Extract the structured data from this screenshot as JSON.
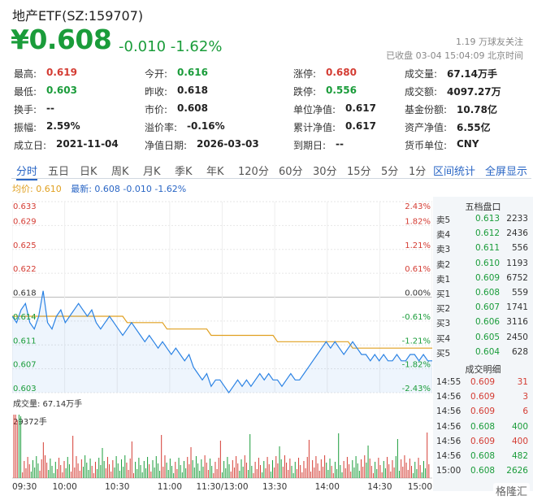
{
  "header": {
    "title": "地产ETF(SZ:159707)",
    "price": "¥0.608",
    "change": "-0.010 -1.62%",
    "followers": "1.19 万球友关注",
    "status": "已收盘 03-04 15:04:09 北京时间"
  },
  "info": [
    [
      {
        "k": "最高:",
        "v": "0.619",
        "c": "red"
      },
      {
        "k": "今开:",
        "v": "0.616",
        "c": "green"
      },
      {
        "k": "涨停:",
        "v": "0.680",
        "c": "red"
      },
      {
        "k": "成交量:",
        "v": "67.14万手",
        "c": ""
      }
    ],
    [
      {
        "k": "最低:",
        "v": "0.603",
        "c": "green"
      },
      {
        "k": "昨收:",
        "v": "0.618",
        "c": ""
      },
      {
        "k": "跌停:",
        "v": "0.556",
        "c": "green"
      },
      {
        "k": "成交额:",
        "v": "4097.27万",
        "c": ""
      }
    ],
    [
      {
        "k": "换手:",
        "v": "--",
        "c": ""
      },
      {
        "k": "市价:",
        "v": "0.608",
        "c": ""
      },
      {
        "k": "单位净值:",
        "v": "0.617",
        "c": ""
      },
      {
        "k": "基金份额:",
        "v": "10.78亿",
        "c": ""
      }
    ],
    [
      {
        "k": "振幅:",
        "v": "2.59%",
        "c": ""
      },
      {
        "k": "溢价率:",
        "v": "-0.16%",
        "c": ""
      },
      {
        "k": "累计净值:",
        "v": "0.617",
        "c": ""
      },
      {
        "k": "资产净值:",
        "v": "6.55亿",
        "c": ""
      }
    ],
    [
      {
        "k": "成立日:",
        "v": "2021-11-04",
        "c": ""
      },
      {
        "k": "净值日期:",
        "v": "2026-03-03",
        "c": ""
      },
      {
        "k": "到期日:",
        "v": "--",
        "c": ""
      },
      {
        "k": "货币单位:",
        "v": "CNY",
        "c": ""
      }
    ]
  ],
  "tabs": [
    "分时",
    "五日",
    "日K",
    "周K",
    "月K",
    "季K",
    "年K",
    "120分",
    "60分",
    "30分",
    "15分",
    "5分",
    "1分"
  ],
  "tabs_right": [
    "区间统计",
    "全屏显示"
  ],
  "active_tab": "分时",
  "legend": {
    "avg": "均价: 0.610",
    "last": "最新: 0.608 -0.010 -1.62%"
  },
  "volume_label": "成交量: 67.14万手",
  "volume_max_label": "29372手",
  "chart_data": {
    "type": "line",
    "y_price_ticks": [
      "0.633",
      "0.629",
      "0.625",
      "0.622",
      "0.618",
      "0.614",
      "0.611",
      "0.607",
      "0.603"
    ],
    "y_pct_ticks": [
      "2.43%",
      "1.82%",
      "1.21%",
      "0.61%",
      "0.00%",
      "-0.61%",
      "-1.21%",
      "-1.82%",
      "-2.43%"
    ],
    "x_ticks": [
      "09:30",
      "10:00",
      "10:30",
      "11:00",
      "11:30/13:00",
      "13:30",
      "14:00",
      "14:30",
      "15:00"
    ],
    "ylim": [
      0.603,
      0.633
    ],
    "prev_close": 0.618,
    "series": [
      {
        "name": "最新",
        "values": [
          0.615,
          0.614,
          0.616,
          0.617,
          0.614,
          0.613,
          0.615,
          0.619,
          0.614,
          0.613,
          0.615,
          0.616,
          0.614,
          0.615,
          0.616,
          0.617,
          0.616,
          0.615,
          0.616,
          0.614,
          0.613,
          0.614,
          0.615,
          0.614,
          0.613,
          0.612,
          0.613,
          0.614,
          0.613,
          0.612,
          0.611,
          0.612,
          0.611,
          0.61,
          0.611,
          0.61,
          0.609,
          0.61,
          0.609,
          0.608,
          0.609,
          0.607,
          0.606,
          0.605,
          0.606,
          0.604,
          0.605,
          0.605,
          0.604,
          0.603,
          0.604,
          0.605,
          0.604,
          0.605,
          0.604,
          0.605,
          0.606,
          0.605,
          0.606,
          0.605,
          0.605,
          0.604,
          0.605,
          0.606,
          0.605,
          0.605,
          0.606,
          0.607,
          0.608,
          0.609,
          0.61,
          0.611,
          0.61,
          0.611,
          0.61,
          0.609,
          0.61,
          0.611,
          0.61,
          0.609,
          0.609,
          0.608,
          0.609,
          0.608,
          0.609,
          0.608,
          0.608,
          0.609,
          0.608,
          0.608,
          0.609,
          0.609,
          0.608,
          0.609,
          0.608,
          0.608
        ]
      },
      {
        "name": "均价",
        "values": [
          0.615,
          0.615,
          0.615,
          0.615,
          0.615,
          0.615,
          0.615,
          0.615,
          0.615,
          0.615,
          0.615,
          0.615,
          0.615,
          0.615,
          0.615,
          0.615,
          0.615,
          0.615,
          0.615,
          0.615,
          0.615,
          0.615,
          0.615,
          0.615,
          0.615,
          0.615,
          0.614,
          0.614,
          0.614,
          0.614,
          0.614,
          0.614,
          0.614,
          0.614,
          0.614,
          0.613,
          0.613,
          0.613,
          0.613,
          0.613,
          0.613,
          0.613,
          0.613,
          0.613,
          0.613,
          0.612,
          0.612,
          0.612,
          0.612,
          0.612,
          0.612,
          0.612,
          0.612,
          0.612,
          0.612,
          0.612,
          0.612,
          0.612,
          0.612,
          0.612,
          0.611,
          0.611,
          0.611,
          0.611,
          0.611,
          0.611,
          0.611,
          0.611,
          0.611,
          0.611,
          0.611,
          0.611,
          0.611,
          0.611,
          0.611,
          0.611,
          0.611,
          0.61,
          0.61,
          0.61,
          0.61,
          0.61,
          0.61,
          0.61,
          0.61,
          0.61,
          0.61,
          0.61,
          0.61,
          0.61,
          0.61,
          0.61,
          0.61,
          0.61,
          0.61,
          0.61
        ]
      }
    ]
  },
  "order_book": {
    "title": "五档盘口",
    "rows": [
      {
        "label": "卖5",
        "price": "0.613",
        "vol": "2233",
        "c": "green"
      },
      {
        "label": "卖4",
        "price": "0.612",
        "vol": "2436",
        "c": "green"
      },
      {
        "label": "卖3",
        "price": "0.611",
        "vol": "556",
        "c": "green"
      },
      {
        "label": "卖2",
        "price": "0.610",
        "vol": "1193",
        "c": "green"
      },
      {
        "label": "卖1",
        "price": "0.609",
        "vol": "6752",
        "c": "green"
      },
      {
        "label": "买1",
        "price": "0.608",
        "vol": "559",
        "c": "green"
      },
      {
        "label": "买2",
        "price": "0.607",
        "vol": "1741",
        "c": "green"
      },
      {
        "label": "买3",
        "price": "0.606",
        "vol": "3116",
        "c": "green"
      },
      {
        "label": "买4",
        "price": "0.605",
        "vol": "2450",
        "c": "green"
      },
      {
        "label": "买5",
        "price": "0.604",
        "vol": "628",
        "c": "green"
      }
    ]
  },
  "trades": {
    "title": "成交明细",
    "rows": [
      {
        "time": "14:55",
        "price": "0.609",
        "vol": "31",
        "c": "red"
      },
      {
        "time": "14:56",
        "price": "0.609",
        "vol": "3",
        "c": "red"
      },
      {
        "time": "14:56",
        "price": "0.609",
        "vol": "6",
        "c": "red"
      },
      {
        "time": "14:56",
        "price": "0.608",
        "vol": "400",
        "c": "green"
      },
      {
        "time": "14:56",
        "price": "0.609",
        "vol": "400",
        "c": "red"
      },
      {
        "time": "14:56",
        "price": "0.608",
        "vol": "482",
        "c": "green"
      },
      {
        "time": "15:00",
        "price": "0.608",
        "vol": "2626",
        "c": "green"
      }
    ]
  },
  "watermark": "格隆汇",
  "colors": {
    "up": "#d43c33",
    "down": "#1a9c3a",
    "price_line": "#2a82e4",
    "avg_line": "#e0a020",
    "accent": "#2a66c5"
  }
}
